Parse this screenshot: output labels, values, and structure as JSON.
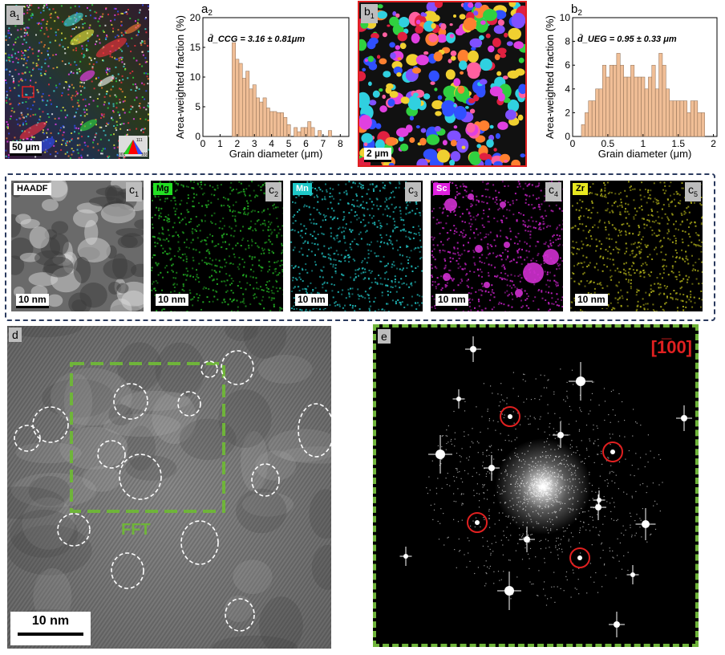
{
  "a1": {
    "label": "a",
    "sub": "1",
    "scale": "50 µm"
  },
  "b1": {
    "label": "b",
    "sub": "1",
    "scale": "2 µm"
  },
  "c_maps": [
    {
      "tag": "HAADF",
      "label": "c",
      "sub": "1",
      "scale": "10 nm",
      "color": "#9a9a9a",
      "tagbg": "#ffffff",
      "tagfg": "#000000"
    },
    {
      "tag": "Mg",
      "label": "c",
      "sub": "2",
      "scale": "10 nm",
      "color": "#22a822",
      "tagbg": "#22e022",
      "tagfg": "#000000"
    },
    {
      "tag": "Mn",
      "label": "c",
      "sub": "3",
      "scale": "10 nm",
      "color": "#1fb6b6",
      "tagbg": "#1ec8c8",
      "tagfg": "#ffffff"
    },
    {
      "tag": "Sc",
      "label": "c",
      "sub": "4",
      "scale": "10 nm",
      "color": "#c020c0",
      "tagbg": "#e020e0",
      "tagfg": "#ffffff"
    },
    {
      "tag": "Zr",
      "label": "c",
      "sub": "5",
      "scale": "10 nm",
      "color": "#a8a818",
      "tagbg": "#e8e820",
      "tagfg": "#000000"
    }
  ],
  "d": {
    "label": "d",
    "scale": "10 nm",
    "fft": "FFT"
  },
  "e": {
    "label": "e",
    "zone_axis": "[1̅00]",
    "zone_color": "#e02020"
  },
  "ipf_legend": {
    "top": "111",
    "left": "001",
    "right": "101"
  },
  "chart_data": [
    {
      "type": "bar",
      "panel": "a2",
      "annotation": "d̄_CCG = 3.16 ± 0.81μm",
      "xlabel": "Grain diameter (μm)",
      "ylabel": "Area-weighted fraction (%)",
      "xlim": [
        0,
        8.5
      ],
      "ylim": [
        0,
        20
      ],
      "xticks": [
        0,
        1,
        2,
        3,
        4,
        5,
        6,
        7,
        8
      ],
      "yticks": [
        0,
        5,
        10,
        15,
        20
      ],
      "bin_width": 0.2,
      "x": [
        1.8,
        2.0,
        2.2,
        2.4,
        2.6,
        2.8,
        3.0,
        3.2,
        3.4,
        3.6,
        3.8,
        4.0,
        4.2,
        4.4,
        4.6,
        4.8,
        5.0,
        5.4,
        5.6,
        5.8,
        6.0,
        6.2,
        6.4,
        6.8,
        7.4
      ],
      "values": [
        15.8,
        13.0,
        12.3,
        9.8,
        11.0,
        8.0,
        8.7,
        6.5,
        5.8,
        6.5,
        4.8,
        4.2,
        4.2,
        4.0,
        4.0,
        3.2,
        2.0,
        1.5,
        0.8,
        1.5,
        1.5,
        2.5,
        1.5,
        1.0,
        1.0
      ],
      "bar_color": "#f0be96"
    },
    {
      "type": "bar",
      "panel": "b2",
      "annotation": "d̄_UEG = 0.95 ± 0.33 μm",
      "xlabel": "Grain diameter (μm)",
      "ylabel": "Area-weighted fraction (%)",
      "xlim": [
        0,
        2.05
      ],
      "ylim": [
        0,
        10
      ],
      "xticks": [
        0.0,
        0.5,
        1.0,
        1.5,
        2.0
      ],
      "yticks": [
        0,
        2,
        4,
        6,
        8,
        10
      ],
      "bin_width": 0.05,
      "x": [
        0.15,
        0.2,
        0.25,
        0.3,
        0.35,
        0.4,
        0.45,
        0.5,
        0.55,
        0.6,
        0.65,
        0.7,
        0.75,
        0.8,
        0.85,
        0.9,
        0.95,
        1.0,
        1.05,
        1.1,
        1.15,
        1.2,
        1.25,
        1.3,
        1.35,
        1.4,
        1.45,
        1.5,
        1.55,
        1.6,
        1.65,
        1.7,
        1.75,
        1.8,
        1.85
      ],
      "values": [
        1.0,
        2.0,
        3.0,
        3.0,
        4.0,
        4.0,
        6.0,
        5.0,
        6.0,
        6.0,
        7.0,
        6.0,
        5.0,
        5.0,
        6.0,
        5.0,
        5.0,
        5.0,
        4.0,
        5.0,
        6.0,
        4.0,
        7.0,
        6.0,
        4.0,
        3.0,
        3.0,
        3.0,
        3.0,
        3.0,
        2.0,
        3.0,
        3.0,
        2.0,
        2.0
      ],
      "bar_color": "#f0be96"
    }
  ]
}
